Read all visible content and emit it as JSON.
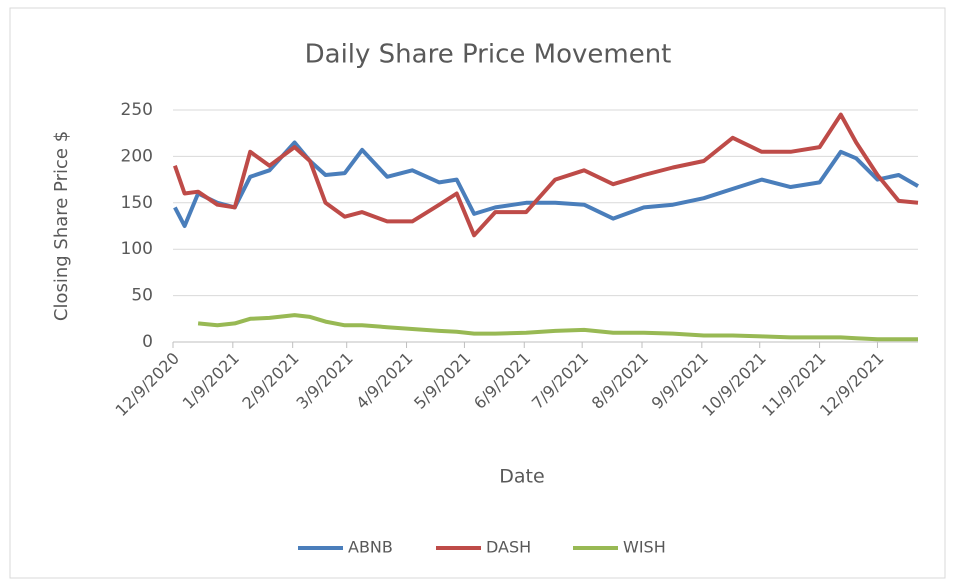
{
  "chart_data": {
    "type": "line",
    "title": "Daily Share Price Movement",
    "xlabel": "Date",
    "ylabel": "Closing Share Price $",
    "x": [
      "2020-12-10",
      "2020-12-15",
      "2020-12-22",
      "2021-01-01",
      "2021-01-10",
      "2021-01-18",
      "2021-01-28",
      "2021-02-10",
      "2021-02-18",
      "2021-02-26",
      "2021-03-08",
      "2021-03-17",
      "2021-03-30",
      "2021-04-12",
      "2021-04-26",
      "2021-05-05",
      "2021-05-14",
      "2021-05-25",
      "2021-06-10",
      "2021-06-25",
      "2021-07-10",
      "2021-07-25",
      "2021-08-10",
      "2021-08-25",
      "2021-09-10",
      "2021-09-25",
      "2021-10-10",
      "2021-10-25",
      "2021-11-09",
      "2021-11-20",
      "2021-11-28",
      "2021-12-09",
      "2021-12-20",
      "2021-12-30"
    ],
    "series": [
      {
        "name": "ABNB",
        "color": "#4a7ebb",
        "values": [
          145,
          125,
          160,
          150,
          145,
          178,
          185,
          215,
          195,
          180,
          182,
          207,
          178,
          185,
          172,
          175,
          138,
          145,
          150,
          150,
          148,
          133,
          145,
          148,
          155,
          165,
          175,
          167,
          172,
          205,
          198,
          175,
          180,
          168
        ]
      },
      {
        "name": "DASH",
        "color": "#be4b48",
        "values": [
          190,
          160,
          162,
          148,
          145,
          205,
          190,
          210,
          195,
          150,
          135,
          140,
          130,
          130,
          148,
          160,
          115,
          140,
          140,
          175,
          185,
          170,
          180,
          188,
          195,
          220,
          205,
          205,
          210,
          245,
          215,
          180,
          152,
          150
        ]
      },
      {
        "name": "WISH",
        "color": "#98b954",
        "values": [
          null,
          null,
          20,
          18,
          20,
          25,
          26,
          29,
          27,
          22,
          18,
          18,
          16,
          14,
          12,
          11,
          9,
          9,
          10,
          12,
          13,
          10,
          10,
          9,
          7,
          7,
          6,
          5,
          5,
          5,
          4,
          3,
          3,
          3
        ]
      }
    ],
    "xlim": [
      "2020-12-09",
      "2021-12-30"
    ],
    "xticks": [
      {
        "value": "2020-12-09",
        "label": "12/9/2020"
      },
      {
        "value": "2021-01-09",
        "label": "1/9/2021"
      },
      {
        "value": "2021-02-09",
        "label": "2/9/2021"
      },
      {
        "value": "2021-03-09",
        "label": "3/9/2021"
      },
      {
        "value": "2021-04-09",
        "label": "4/9/2021"
      },
      {
        "value": "2021-05-09",
        "label": "5/9/2021"
      },
      {
        "value": "2021-06-09",
        "label": "6/9/2021"
      },
      {
        "value": "2021-07-09",
        "label": "7/9/2021"
      },
      {
        "value": "2021-08-09",
        "label": "8/9/2021"
      },
      {
        "value": "2021-09-09",
        "label": "9/9/2021"
      },
      {
        "value": "2021-10-09",
        "label": "10/9/2021"
      },
      {
        "value": "2021-11-09",
        "label": "11/9/2021"
      },
      {
        "value": "2021-12-09",
        "label": "12/9/2021"
      }
    ],
    "ylim": [
      0,
      250
    ],
    "yticks": [
      0,
      50,
      100,
      150,
      200,
      250
    ],
    "grid": true,
    "legend": "bottom"
  }
}
